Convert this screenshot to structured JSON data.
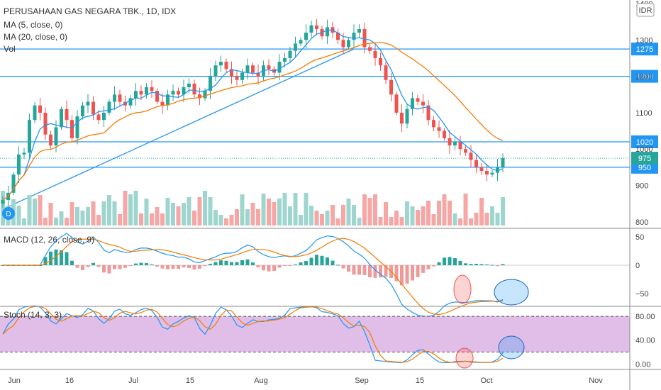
{
  "header": {
    "title": "PERUSAHAAN GAS NEGARA TBK., 1D, IDX",
    "ma5_label": "MA (5, close, 0)",
    "ma20_label": "MA (20, close, 0)",
    "vol_label": "Vol",
    "currency": "IDR"
  },
  "macd": {
    "label": "MACD (12, 26, close, 9)",
    "ticks": [
      "50",
      "0",
      "−50"
    ]
  },
  "stoch": {
    "label": "Stoch (14, 3, 3)",
    "ticks": [
      "80.00",
      "40.00",
      "0.00"
    ]
  },
  "colors": {
    "up": "#26a69a",
    "down": "#ef5350",
    "ma5": "#2196f3",
    "ma20": "#f57c00",
    "hline": "#2196f3",
    "stoch_band": "#e1bee7"
  },
  "chart_data": {
    "type": "candlestick",
    "x_ticks": [
      "Jun",
      "16",
      "Jul",
      "15",
      "Aug",
      "Sep",
      "15",
      "Oct",
      "Nov"
    ],
    "y_ticks": [
      "800",
      "900",
      "1000",
      "1100",
      "1200",
      "1300",
      "1400"
    ],
    "ylim": [
      790,
      1400
    ],
    "horizontal_levels": [
      "1275",
      "1200",
      "1020",
      "950"
    ],
    "last_price": "975",
    "trendline": [
      [
        0,
        835
      ],
      [
        66,
        1275
      ]
    ],
    "closes": [
      860,
      880,
      930,
      985,
      990,
      1080,
      1120,
      1100,
      1040,
      1010,
      1060,
      1110,
      1080,
      1030,
      1090,
      1120,
      1130,
      1095,
      1080,
      1100,
      1130,
      1150,
      1130,
      1120,
      1140,
      1160,
      1150,
      1170,
      1160,
      1130,
      1120,
      1150,
      1160,
      1150,
      1170,
      1180,
      1150,
      1140,
      1160,
      1200,
      1230,
      1240,
      1220,
      1200,
      1190,
      1210,
      1230,
      1210,
      1200,
      1230,
      1220,
      1210,
      1240,
      1250,
      1270,
      1290,
      1300,
      1320,
      1340,
      1330,
      1310,
      1335,
      1320,
      1300,
      1280,
      1300,
      1320,
      1330,
      1280,
      1270,
      1250,
      1230,
      1190,
      1150,
      1100,
      1070,
      1110,
      1140,
      1130,
      1120,
      1080,
      1060,
      1050,
      1030,
      1010,
      1020,
      1000,
      990,
      970,
      950,
      940,
      930,
      935,
      950,
      975
    ]
  }
}
